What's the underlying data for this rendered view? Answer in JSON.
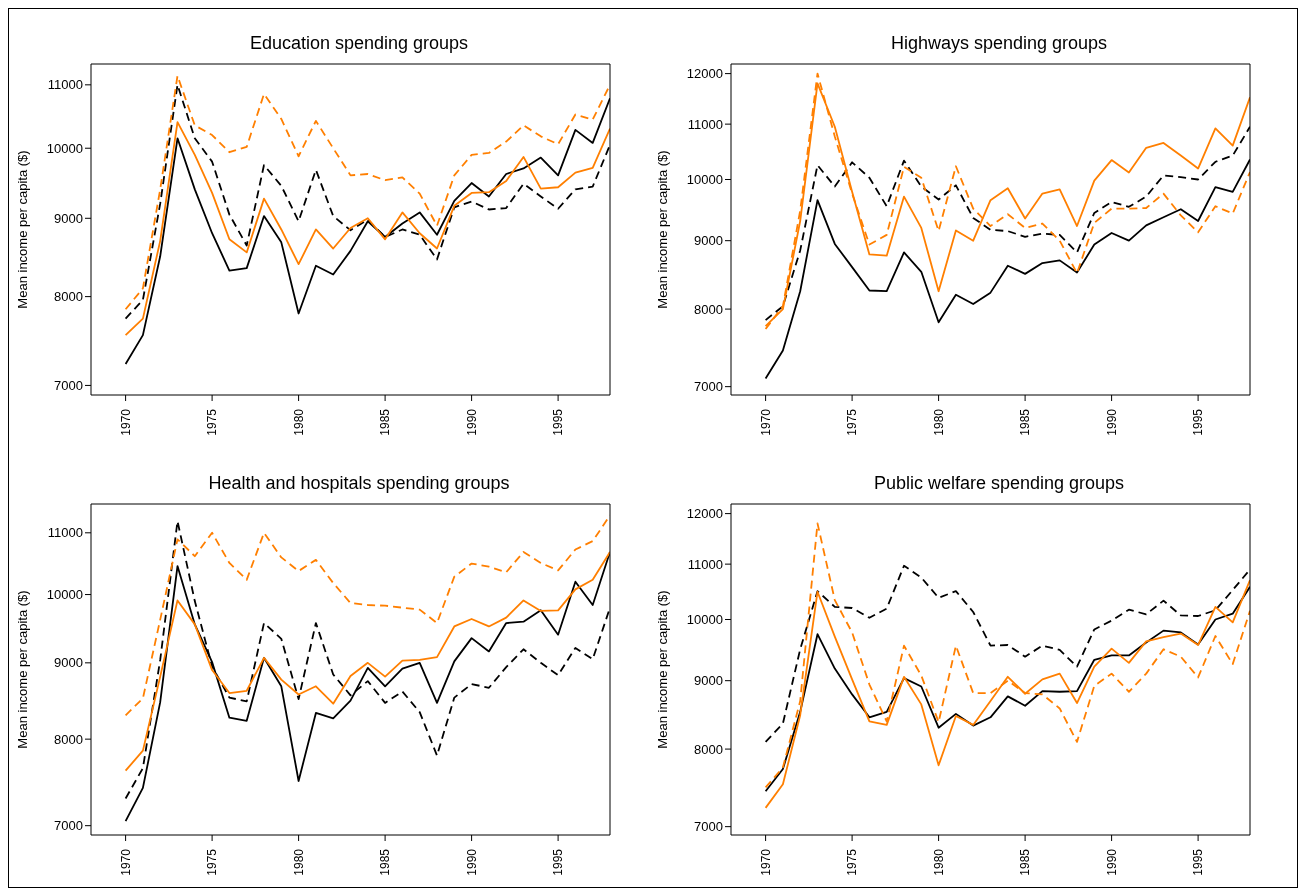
{
  "chart_data": [
    {
      "type": "line",
      "title": "Education spending groups",
      "ylabel": "Mean income per capita ($)",
      "log": "y",
      "xlim": [
        1968,
        1998
      ],
      "xticks": [
        1970,
        1975,
        1980,
        1985,
        1990,
        1995
      ],
      "ylim": [
        6900,
        11350
      ],
      "yticks": [
        7000,
        8000,
        9000,
        10000,
        11000
      ],
      "x": [
        1970,
        1971,
        1972,
        1973,
        1974,
        1975,
        1976,
        1977,
        1978,
        1979,
        1980,
        1981,
        1982,
        1983,
        1984,
        1985,
        1986,
        1987,
        1988,
        1989,
        1990,
        1991,
        1992,
        1993,
        1994,
        1995,
        1996,
        1997,
        1998
      ],
      "series": [
        {
          "color": "#000000",
          "line_style": "solid",
          "values": [
            7230,
            7550,
            8500,
            10150,
            9400,
            8800,
            8320,
            8350,
            9030,
            8680,
            7800,
            8380,
            8270,
            8570,
            8960,
            8750,
            8930,
            9080,
            8780,
            9240,
            9490,
            9300,
            9620,
            9700,
            9860,
            9600,
            10280,
            10080,
            10780
          ]
        },
        {
          "color": "#000000",
          "line_style": "dashed",
          "values": [
            7740,
            7960,
            9200,
            11000,
            10150,
            9800,
            9050,
            8640,
            9750,
            9450,
            8960,
            9680,
            9030,
            8840,
            8980,
            8750,
            8850,
            8780,
            8460,
            9150,
            9230,
            9120,
            9140,
            9480,
            9300,
            9130,
            9400,
            9440,
            10050
          ]
        },
        {
          "color": "#ff7f00",
          "line_style": "solid",
          "values": [
            7550,
            7740,
            8700,
            10400,
            9900,
            9350,
            8720,
            8550,
            9270,
            8850,
            8400,
            8850,
            8600,
            8870,
            9000,
            8720,
            9080,
            8800,
            8600,
            9170,
            9350,
            9360,
            9520,
            9870,
            9410,
            9430,
            9640,
            9710,
            10300
          ]
        },
        {
          "color": "#ff7f00",
          "line_style": "dashed",
          "values": [
            7850,
            8100,
            9400,
            11150,
            10350,
            10200,
            9940,
            10020,
            10850,
            10450,
            9880,
            10420,
            10000,
            9600,
            9620,
            9530,
            9570,
            9340,
            8900,
            9600,
            9900,
            9930,
            10100,
            10350,
            10180,
            10060,
            10520,
            10440,
            11000
          ]
        }
      ]
    },
    {
      "type": "line",
      "title": "Highways spending groups",
      "ylabel": "Mean income per capita ($)",
      "log": "y",
      "xlim": [
        1968,
        1998
      ],
      "xticks": [
        1970,
        1975,
        1980,
        1985,
        1990,
        1995
      ],
      "ylim": [
        6900,
        12200
      ],
      "yticks": [
        7000,
        8000,
        9000,
        10000,
        11000,
        12000
      ],
      "x": [
        1970,
        1971,
        1972,
        1973,
        1974,
        1975,
        1976,
        1977,
        1978,
        1979,
        1980,
        1981,
        1982,
        1983,
        1984,
        1985,
        1986,
        1987,
        1988,
        1989,
        1990,
        1991,
        1992,
        1993,
        1994,
        1995,
        1996,
        1997,
        1998
      ],
      "series": [
        {
          "color": "#000000",
          "line_style": "solid",
          "values": [
            7100,
            7450,
            8250,
            9650,
            8950,
            8600,
            8260,
            8250,
            8820,
            8530,
            7820,
            8200,
            8070,
            8230,
            8620,
            8500,
            8660,
            8700,
            8520,
            8940,
            9120,
            9000,
            9240,
            9370,
            9500,
            9310,
            9870,
            9790,
            10350
          ]
        },
        {
          "color": "#000000",
          "line_style": "dashed",
          "values": [
            7850,
            8040,
            8850,
            10250,
            9880,
            10300,
            10030,
            9550,
            10330,
            9880,
            9660,
            9900,
            9360,
            9170,
            9150,
            9060,
            9110,
            9090,
            8820,
            9440,
            9620,
            9540,
            9710,
            10070,
            10040,
            10000,
            10310,
            10420,
            10950
          ]
        },
        {
          "color": "#ff7f00",
          "line_style": "solid",
          "values": [
            7770,
            8000,
            9310,
            11800,
            10950,
            9790,
            8790,
            8770,
            9710,
            9200,
            8250,
            9160,
            9000,
            9650,
            9850,
            9350,
            9760,
            9830,
            9230,
            9980,
            10340,
            10120,
            10560,
            10650,
            10420,
            10190,
            10920,
            10600,
            11520
          ]
        },
        {
          "color": "#ff7f00",
          "line_style": "dashed",
          "values": [
            7730,
            8040,
            9480,
            12000,
            10770,
            9760,
            8940,
            9090,
            10220,
            10030,
            9150,
            10230,
            9510,
            9230,
            9420,
            9200,
            9270,
            9000,
            8510,
            9280,
            9510,
            9510,
            9520,
            9760,
            9400,
            9130,
            9550,
            9430,
            10130
          ]
        }
      ]
    },
    {
      "type": "line",
      "title": "Health and hospitals spending groups",
      "ylabel": "Mean income per capita ($)",
      "log": "y",
      "xlim": [
        1968,
        1998
      ],
      "xticks": [
        1970,
        1975,
        1980,
        1985,
        1990,
        1995
      ],
      "ylim": [
        6900,
        11500
      ],
      "yticks": [
        7000,
        8000,
        9000,
        10000,
        11000
      ],
      "x": [
        1970,
        1971,
        1972,
        1973,
        1974,
        1975,
        1976,
        1977,
        1978,
        1979,
        1980,
        1981,
        1982,
        1983,
        1984,
        1985,
        1986,
        1987,
        1988,
        1989,
        1990,
        1991,
        1992,
        1993,
        1994,
        1995,
        1996,
        1997,
        1998
      ],
      "series": [
        {
          "color": "#000000",
          "line_style": "solid",
          "values": [
            7050,
            7420,
            8470,
            10450,
            9550,
            9010,
            8270,
            8230,
            9070,
            8680,
            7500,
            8330,
            8260,
            8490,
            8930,
            8680,
            8920,
            9000,
            8460,
            9020,
            9350,
            9160,
            9570,
            9590,
            9760,
            9400,
            10200,
            9840,
            10680
          ]
        },
        {
          "color": "#000000",
          "line_style": "dashed",
          "values": [
            7300,
            7650,
            9040,
            11200,
            9900,
            8950,
            8530,
            8480,
            9570,
            9340,
            8510,
            9570,
            8840,
            8560,
            8750,
            8460,
            8610,
            8340,
            7800,
            8530,
            8710,
            8660,
            8940,
            9190,
            9000,
            8830,
            9210,
            9050,
            9800
          ]
        },
        {
          "color": "#ff7f00",
          "line_style": "solid",
          "values": [
            7620,
            7860,
            8810,
            9910,
            9550,
            8900,
            8590,
            8620,
            9070,
            8770,
            8570,
            8680,
            8450,
            8820,
            9000,
            8810,
            9030,
            9040,
            9080,
            9520,
            9630,
            9520,
            9650,
            9910,
            9750,
            9760,
            10080,
            10230,
            10680
          ]
        },
        {
          "color": "#ff7f00",
          "line_style": "dashed",
          "values": [
            8300,
            8520,
            9620,
            10890,
            10610,
            11000,
            10500,
            10230,
            11000,
            10590,
            10370,
            10550,
            10180,
            9870,
            9840,
            9830,
            9800,
            9770,
            9570,
            10280,
            10490,
            10440,
            10350,
            10680,
            10500,
            10380,
            10720,
            10860,
            11300
          ]
        }
      ]
    },
    {
      "type": "line",
      "title": "Public welfare spending groups",
      "ylabel": "Mean income per capita ($)",
      "log": "y",
      "xlim": [
        1968,
        1998
      ],
      "xticks": [
        1970,
        1975,
        1980,
        1985,
        1990,
        1995
      ],
      "ylim": [
        6900,
        12200
      ],
      "yticks": [
        7000,
        8000,
        9000,
        10000,
        11000,
        12000
      ],
      "x": [
        1970,
        1971,
        1972,
        1973,
        1974,
        1975,
        1976,
        1977,
        1978,
        1979,
        1980,
        1981,
        1982,
        1983,
        1984,
        1985,
        1986,
        1987,
        1988,
        1989,
        1990,
        1991,
        1992,
        1993,
        1994,
        1995,
        1996,
        1997,
        1998
      ],
      "series": [
        {
          "color": "#000000",
          "line_style": "solid",
          "values": [
            7440,
            7730,
            8530,
            9750,
            9190,
            8790,
            8450,
            8530,
            9040,
            8910,
            8300,
            8500,
            8330,
            8450,
            8760,
            8620,
            8840,
            8830,
            8840,
            9330,
            9400,
            9400,
            9610,
            9810,
            9780,
            9580,
            10000,
            10100,
            10580
          ]
        },
        {
          "color": "#000000",
          "line_style": "dashed",
          "values": [
            8100,
            8360,
            9500,
            10500,
            10220,
            10200,
            10030,
            10190,
            10970,
            10750,
            10380,
            10500,
            10130,
            9560,
            9570,
            9380,
            9560,
            9490,
            9220,
            9830,
            9980,
            10170,
            10090,
            10330,
            10070,
            10060,
            10160,
            10520,
            10900
          ]
        },
        {
          "color": "#ff7f00",
          "line_style": "solid",
          "values": [
            7230,
            7530,
            8480,
            10490,
            9710,
            9020,
            8390,
            8340,
            9060,
            8640,
            7780,
            8470,
            8340,
            8690,
            9060,
            8800,
            9020,
            9110,
            8660,
            9220,
            9510,
            9280,
            9630,
            9700,
            9760,
            9570,
            10220,
            9950,
            10700
          ]
        },
        {
          "color": "#ff7f00",
          "line_style": "dashed",
          "values": [
            7490,
            7750,
            8690,
            11800,
            10340,
            9780,
            8940,
            8390,
            9560,
            9080,
            8380,
            9560,
            8810,
            8810,
            9000,
            8810,
            8790,
            8580,
            8100,
            8920,
            9110,
            8830,
            9110,
            9500,
            9380,
            9050,
            9720,
            9260,
            10150
          ]
        }
      ]
    }
  ]
}
